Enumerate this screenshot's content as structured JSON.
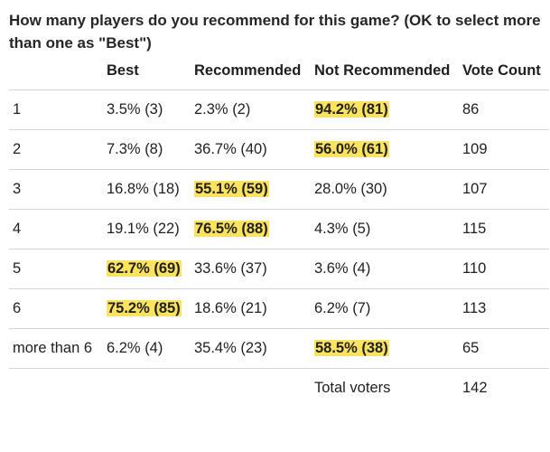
{
  "question": "How many players do you recommend for this game? (OK to select more than one as \"Best\")",
  "headers": {
    "players": "",
    "best": "Best",
    "recommended": "Recommended",
    "not_recommended": "Not Recommended",
    "vote_count": "Vote Count"
  },
  "rows": [
    {
      "players": "1",
      "best": "3.5% (3)",
      "recommended": "2.3% (2)",
      "not_recommended": "94.2% (81)",
      "votes": "86",
      "highlight": "not_recommended"
    },
    {
      "players": "2",
      "best": "7.3% (8)",
      "recommended": "36.7% (40)",
      "not_recommended": "56.0% (61)",
      "votes": "109",
      "highlight": "not_recommended"
    },
    {
      "players": "3",
      "best": "16.8% (18)",
      "recommended": "55.1% (59)",
      "not_recommended": "28.0% (30)",
      "votes": "107",
      "highlight": "recommended"
    },
    {
      "players": "4",
      "best": "19.1% (22)",
      "recommended": "76.5% (88)",
      "not_recommended": "4.3% (5)",
      "votes": "115",
      "highlight": "recommended"
    },
    {
      "players": "5",
      "best": "62.7% (69)",
      "recommended": "33.6% (37)",
      "not_recommended": "3.6% (4)",
      "votes": "110",
      "highlight": "best"
    },
    {
      "players": "6",
      "best": "75.2% (85)",
      "recommended": "18.6% (21)",
      "not_recommended": "6.2% (7)",
      "votes": "113",
      "highlight": "best"
    },
    {
      "players": "more than 6",
      "best": "6.2% (4)",
      "recommended": "35.4% (23)",
      "not_recommended": "58.5% (38)",
      "votes": "65",
      "highlight": "not_recommended"
    }
  ],
  "footer": {
    "label": "Total voters",
    "value": "142"
  },
  "colors": {
    "highlight": "#fbe360",
    "border": "#d6d6d6"
  }
}
